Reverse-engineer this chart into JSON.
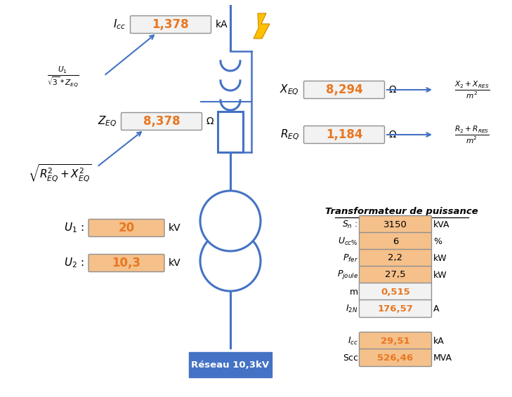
{
  "bg_color": "#ffffff",
  "blue": "#4472C4",
  "orange": "#E87722",
  "box_bg": "#F2F2F2",
  "box_bg_orange": "#F5C08A",
  "box_edge": "#909090",
  "icc_val": "1,378",
  "icc_unit": "kA",
  "zeq_val": "8,378",
  "zeq_unit": "Ω",
  "xeq_val": "8,294",
  "xeq_unit": "Ω",
  "req_val": "1,184",
  "req_unit": "Ω",
  "u1_val": "20",
  "u1_unit": "kV",
  "u2_val": "10,3",
  "u2_unit": "kV",
  "sn_val": "3150",
  "sn_unit": "kVA",
  "ucc_val": "6",
  "ucc_unit": "%",
  "pfer_val": "2,2",
  "pfer_unit": "kW",
  "pjoule_val": "27,5",
  "pjoule_unit": "kW",
  "m_val": "0,515",
  "i2n_val": "176,57",
  "i2n_unit": "A",
  "icc2_val": "29,51",
  "icc2_unit": "kA",
  "scc_val": "526,46",
  "scc_unit": "MVA",
  "reseau_label": "Réseau 10,3kV",
  "table_title": "Transformateur de puissance"
}
